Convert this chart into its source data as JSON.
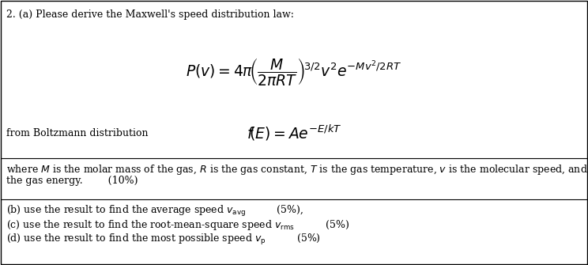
{
  "title_text": "2. (a) Please derive the Maxwell's speed distribution law:",
  "boltzmann_label": "from Boltzmann distribution",
  "bg_color": "#ffffff",
  "text_color": "#000000",
  "border_color": "#000000",
  "font_size_title": 9.0,
  "font_size_formula": 13.5,
  "font_size_body": 9.0,
  "fig_width": 7.44,
  "fig_height": 3.35,
  "dpi": 100
}
